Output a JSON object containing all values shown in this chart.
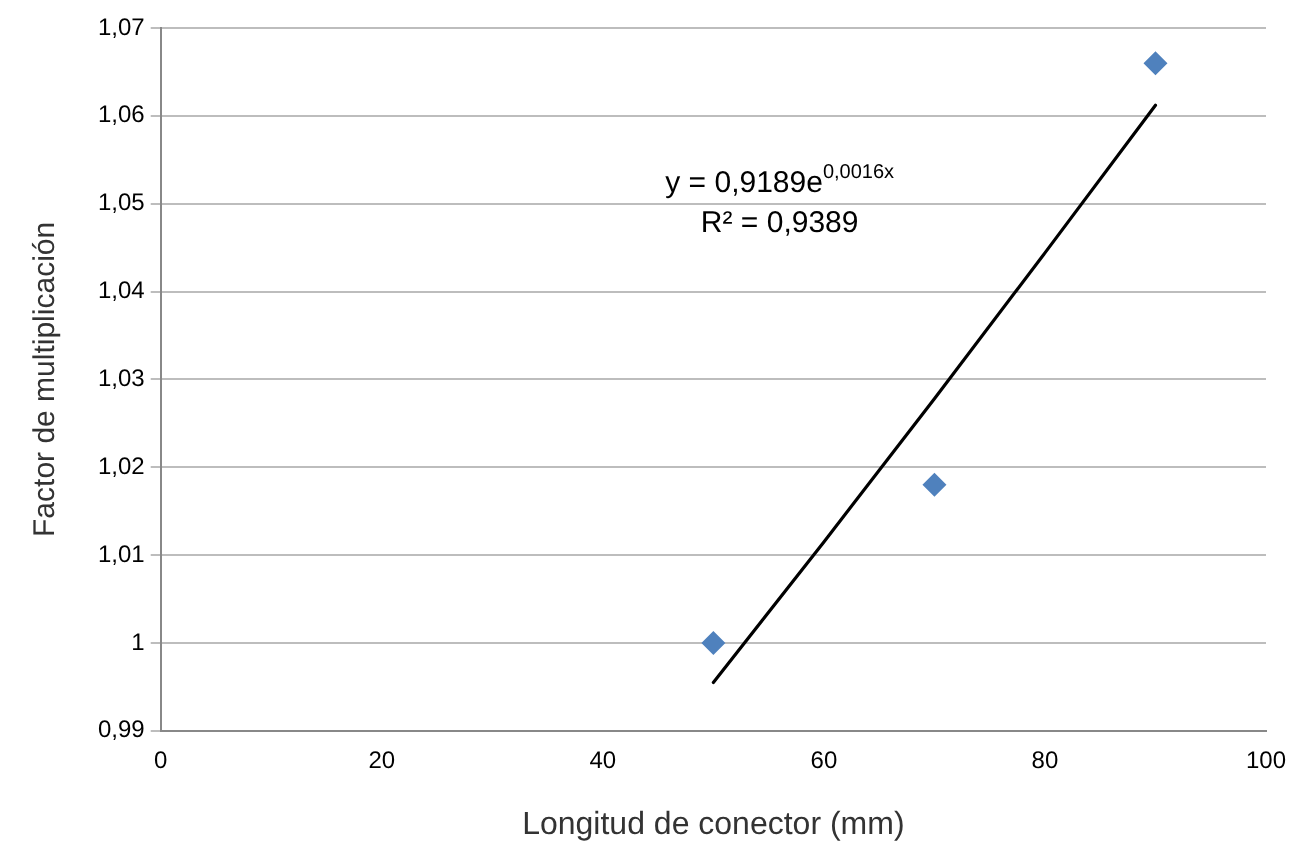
{
  "chart_data": {
    "type": "scatter",
    "xlabel": "Longitud de conector (mm)",
    "ylabel": "Factor de multiplicación",
    "xlim": [
      0,
      100
    ],
    "xticks": [
      0,
      20,
      40,
      60,
      80,
      100
    ],
    "ylim": [
      0.99,
      1.07
    ],
    "yticks": [
      {
        "value": 0.99,
        "label": "0,99"
      },
      {
        "value": 1,
        "label": "1"
      },
      {
        "value": 1.01,
        "label": "1,01"
      },
      {
        "value": 1.02,
        "label": "1,02"
      },
      {
        "value": 1.03,
        "label": "1,03"
      },
      {
        "value": 1.04,
        "label": "1,04"
      },
      {
        "value": 1.05,
        "label": "1,05"
      },
      {
        "value": 1.06,
        "label": "1,06"
      },
      {
        "value": 1.07,
        "label": "1,07"
      }
    ],
    "grid": "y",
    "legend": false,
    "marker": "diamond",
    "series": [
      {
        "color": "#4f81bd",
        "x": [
          50,
          70,
          90
        ],
        "values": [
          1.0,
          1.018,
          1.066
        ]
      },
      {
        "type": "line",
        "color": "#000000",
        "marker": "none",
        "x": [
          50,
          60,
          70,
          80,
          90
        ],
        "values": [
          0.9955,
          1.0115,
          1.0278,
          1.0444,
          1.0612
        ]
      }
    ],
    "annotations": [
      "y = 0,9189e$^{0,0016x}$",
      "R² = 0,9389"
    ]
  }
}
